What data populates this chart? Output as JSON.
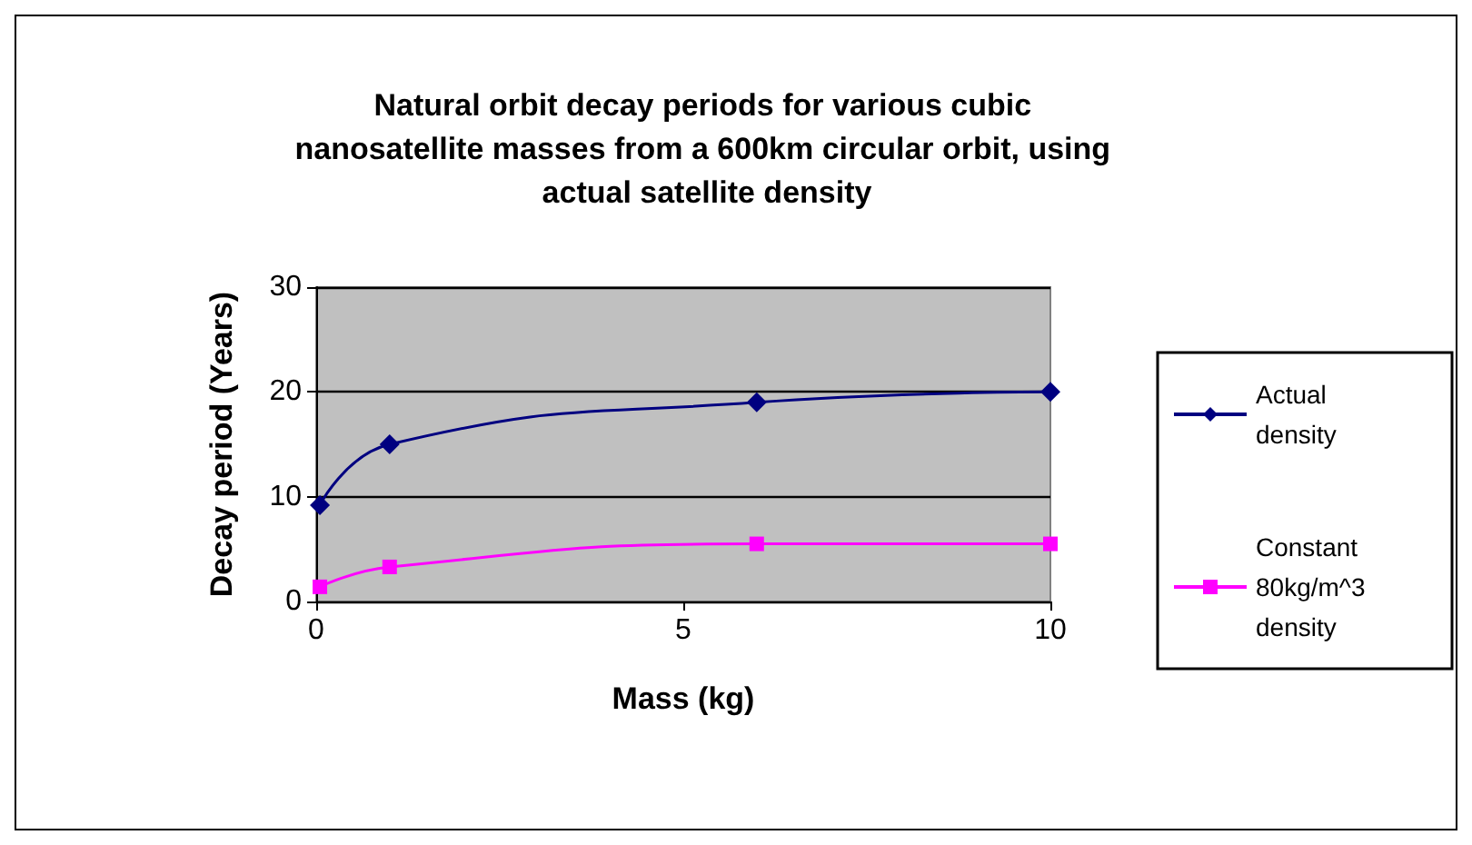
{
  "chart_data": {
    "type": "line",
    "title": "Natural orbit decay periods for various cubic nanosatellite masses from a 600km circular orbit, using actual satellite density",
    "xlabel": "Mass (kg)",
    "ylabel": "Decay period (Years)",
    "x": [
      0.05,
      1,
      6,
      10
    ],
    "series": [
      {
        "name": "Actual density",
        "color": "#000080",
        "marker": "diamond",
        "values": [
          9.2,
          15,
          19,
          20
        ]
      },
      {
        "name": "Constant 80kg/m^3 density",
        "color": "#ff00ff",
        "marker": "square",
        "values": [
          1.4,
          3.3,
          5.5,
          5.5
        ]
      }
    ],
    "xlim": [
      0,
      10
    ],
    "xticks": [
      0,
      5,
      10
    ],
    "ylim": [
      0,
      30
    ],
    "yticks": [
      0,
      10,
      20,
      30
    ],
    "grid": "y",
    "legend": "right"
  }
}
